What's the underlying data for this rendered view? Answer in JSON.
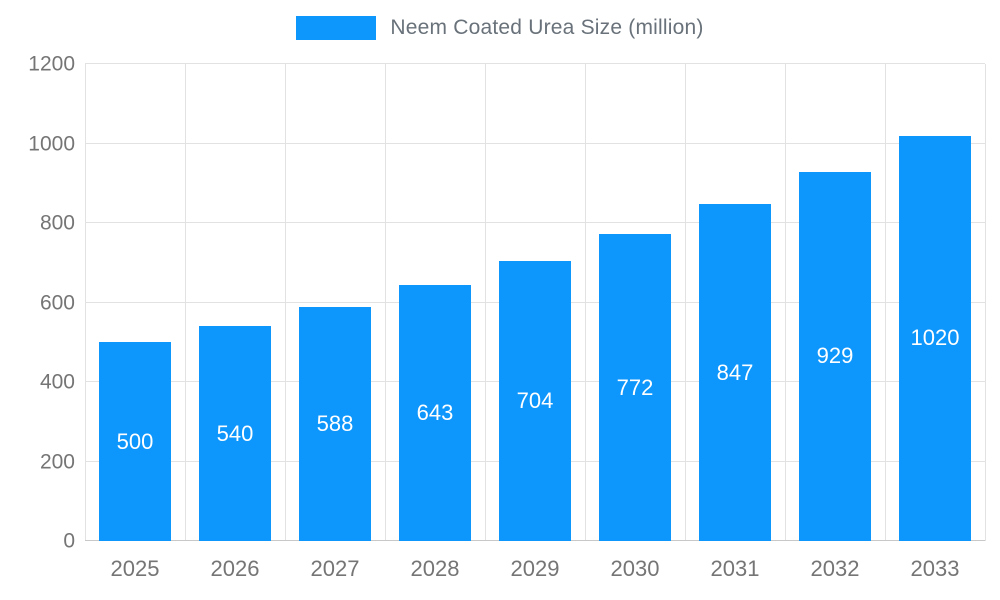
{
  "legend": {
    "label": "Neem Coated Urea Size (million)"
  },
  "chart_data": {
    "type": "bar",
    "title": "Neem Coated Urea Size (million)",
    "categories": [
      "2025",
      "2026",
      "2027",
      "2028",
      "2029",
      "2030",
      "2031",
      "2032",
      "2033"
    ],
    "values": [
      500,
      540,
      588,
      643,
      704,
      772,
      847,
      929,
      1020
    ],
    "xlabel": "",
    "ylabel": "",
    "ylim": [
      0,
      1200
    ],
    "ytick_interval": 200,
    "ytick_labels": [
      "0",
      "200",
      "400",
      "600",
      "800",
      "1000",
      "1200"
    ],
    "grid": true,
    "legend_position": "top",
    "bar_color": "#0d96fb",
    "value_label_color": "#ffffff",
    "axis_text_color": "#757575"
  }
}
